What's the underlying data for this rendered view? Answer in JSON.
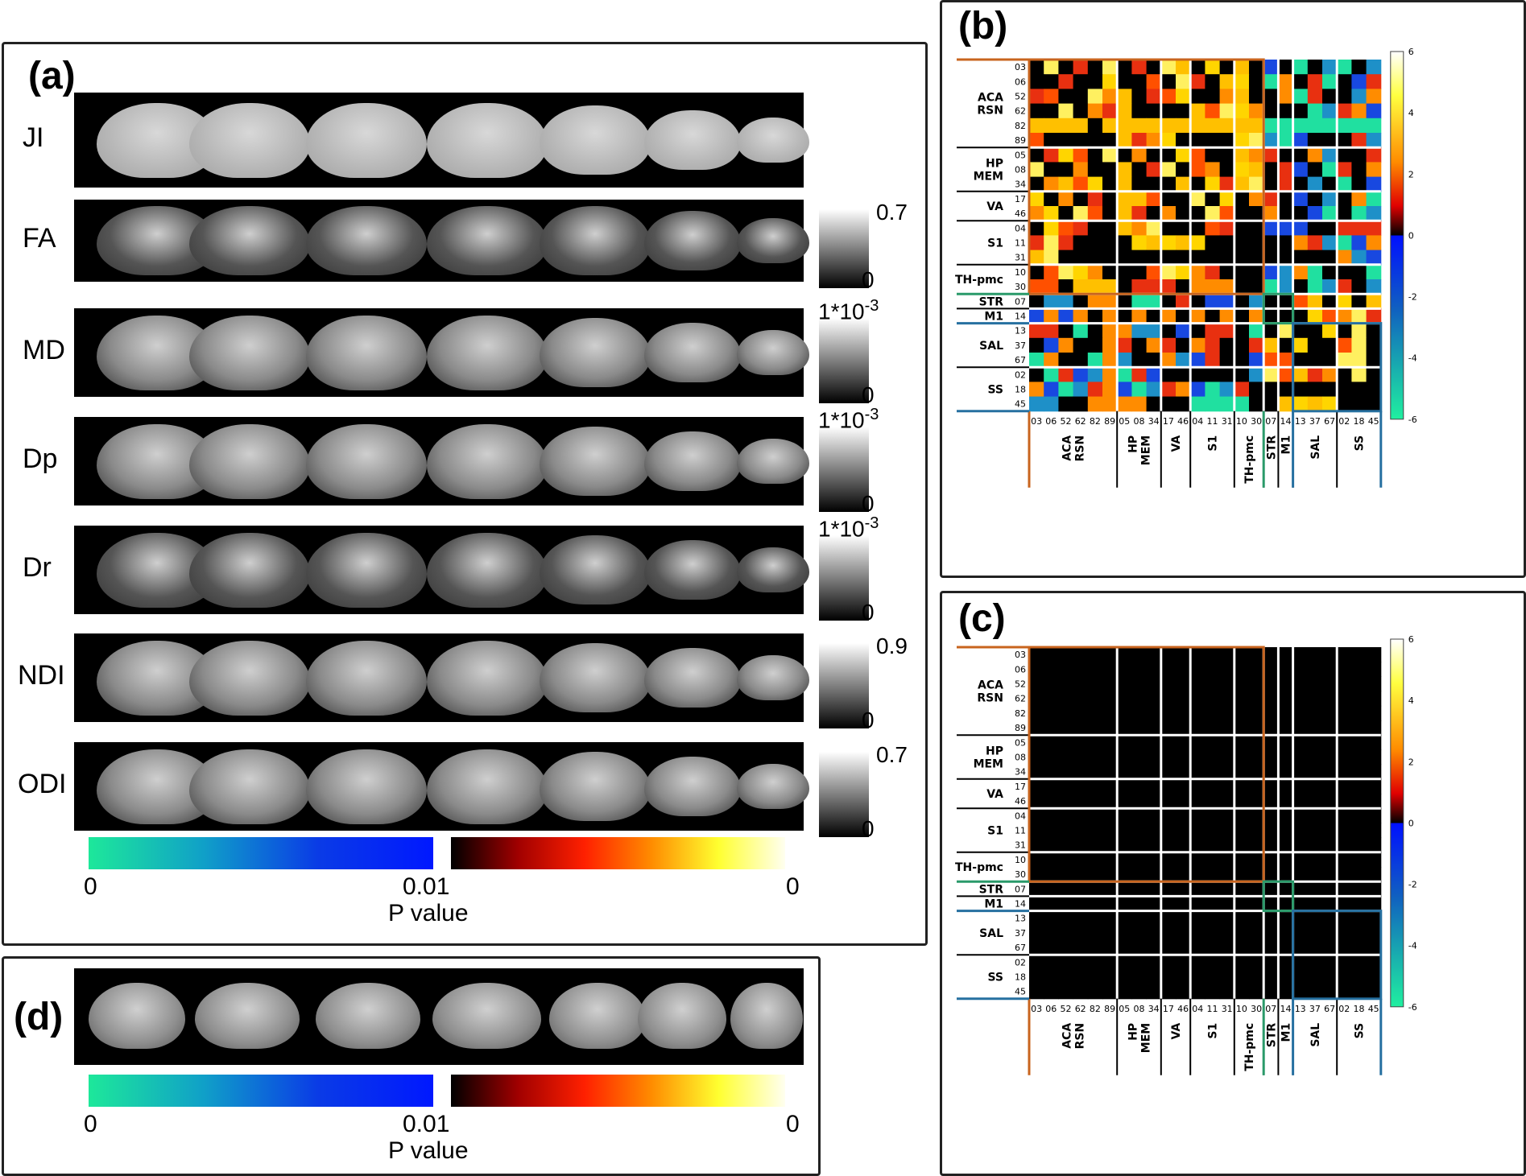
{
  "panel_a": {
    "label": "(a)",
    "rows": [
      {
        "name": "JI",
        "cb_top": "",
        "cb_bottom": ""
      },
      {
        "name": "FA",
        "cb_top": "0.7",
        "cb_bottom": "0"
      },
      {
        "name": "MD",
        "cb_top": "1*10",
        "cb_exp": "-3",
        "cb_bottom": "0"
      },
      {
        "name": "Dp",
        "cb_top": "1*10",
        "cb_exp": "-3",
        "cb_bottom": "0"
      },
      {
        "name": "Dr",
        "cb_top": "1*10",
        "cb_exp": "-3",
        "cb_bottom": "0"
      },
      {
        "name": "NDI",
        "cb_top": "0.9",
        "cb_bottom": "0"
      },
      {
        "name": "ODI",
        "cb_top": "0.7",
        "cb_bottom": "0"
      }
    ],
    "pbar": {
      "left_start": "0",
      "left_end": "0.01",
      "right_end": "0",
      "title": "P value"
    }
  },
  "panel_d": {
    "label": "(d)",
    "pbar": {
      "left_start": "0",
      "left_end": "0.01",
      "right_end": "0",
      "title": "P value"
    }
  },
  "panel_b": {
    "label": "(b)"
  },
  "panel_c": {
    "label": "(c)"
  },
  "matrix": {
    "components": [
      "03",
      "06",
      "52",
      "62",
      "82",
      "89",
      "05",
      "08",
      "34",
      "17",
      "46",
      "04",
      "11",
      "31",
      "10",
      "30",
      "07",
      "14",
      "13",
      "37",
      "67",
      "02",
      "18",
      "45"
    ],
    "groups": [
      {
        "name": "ACA\nRSN",
        "size": 6
      },
      {
        "name": "HP\nMEM",
        "size": 3
      },
      {
        "name": "VA",
        "size": 2
      },
      {
        "name": "S1",
        "size": 3
      },
      {
        "name": "TH-pmc",
        "size": 2
      },
      {
        "name": "STR",
        "size": 1
      },
      {
        "name": "M1",
        "size": 1
      },
      {
        "name": "SAL",
        "size": 3
      },
      {
        "name": "SS",
        "size": 3
      }
    ],
    "colorbar_ticks": [
      "6",
      "4",
      "2",
      "0",
      "-2",
      "-4",
      "-6"
    ],
    "colors": {
      "orange_box": "#c8641e",
      "green_box": "#2a9a6a",
      "blue_box": "#2670a0"
    }
  }
}
